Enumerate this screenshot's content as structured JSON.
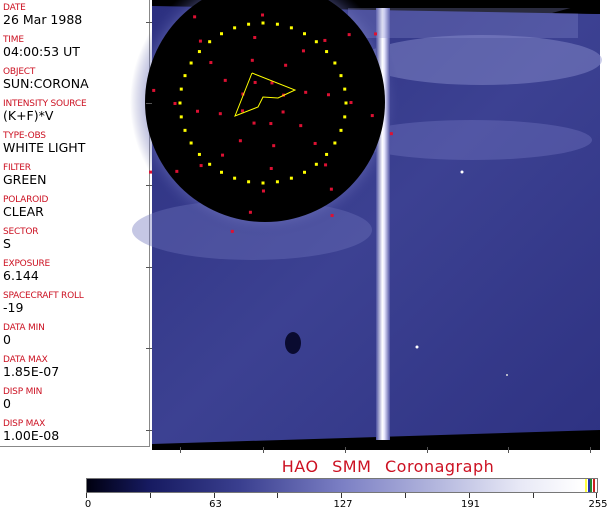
{
  "header_fields": [
    {
      "label": "DATE",
      "value": "26 Mar 1988"
    },
    {
      "label": "TIME",
      "value": "04:00:53 UT"
    },
    {
      "label": "OBJECT",
      "value": "SUN:CORONA"
    },
    {
      "label": "INTENSITY SOURCE",
      "value": "(K+F)*V"
    },
    {
      "label": "TYPE-OBS",
      "value": "WHITE LIGHT"
    },
    {
      "label": "FILTER",
      "value": "GREEN"
    },
    {
      "label": "POLAROID",
      "value": "CLEAR"
    },
    {
      "label": "SECTOR",
      "value": "S"
    },
    {
      "label": "EXPOSURE",
      "value": "6.144"
    },
    {
      "label": "SPACECRAFT ROLL",
      "value": "-19"
    },
    {
      "label": "DATA MIN",
      "value": "0"
    },
    {
      "label": "DATA MAX",
      "value": "1.85E-07"
    },
    {
      "label": "DISP MIN",
      "value": "0"
    },
    {
      "label": "DISP MAX",
      "value": "1.00E-08"
    }
  ],
  "title": "HAO   SMM  Coronagraph",
  "colorbar": {
    "ticks": [
      "0",
      "63",
      "127",
      "191",
      "255"
    ],
    "low_color": "#000010",
    "high_color": "#ffffff",
    "top_colors": [
      "#ffff44",
      "#2233aa",
      "#228833",
      "#cc2222"
    ]
  },
  "colors": {
    "label": "#cc1122",
    "overlay_yellow": "#ffff00",
    "overlay_red": "#dd1133",
    "image_blue": "#3a3f8f"
  }
}
